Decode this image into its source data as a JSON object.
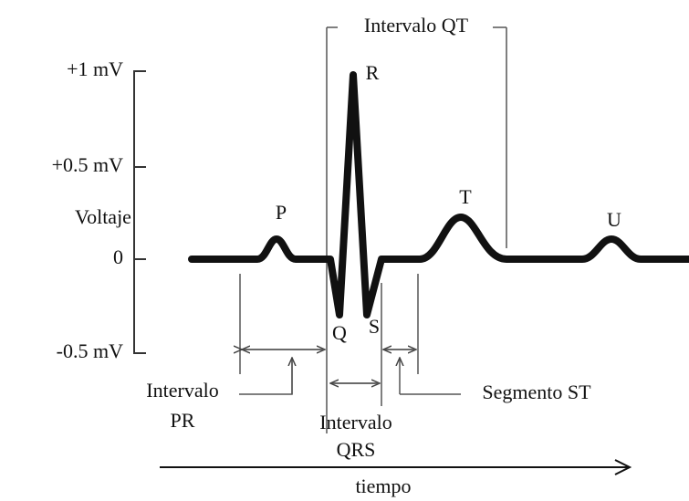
{
  "y_axis": {
    "label": "Voltaje",
    "ticks": [
      "+1 mV",
      "+0.5 mV",
      "0",
      "-0.5 mV"
    ]
  },
  "waves": {
    "P": "P",
    "Q": "Q",
    "R": "R",
    "S": "S",
    "T": "T",
    "U": "U"
  },
  "intervals": {
    "qt": "Intervalo QT",
    "pr": [
      "Intervalo",
      "PR"
    ],
    "qrs": [
      "Intervalo",
      "QRS"
    ],
    "st": "Segmento ST"
  },
  "time_axis": {
    "label": "tiempo"
  }
}
